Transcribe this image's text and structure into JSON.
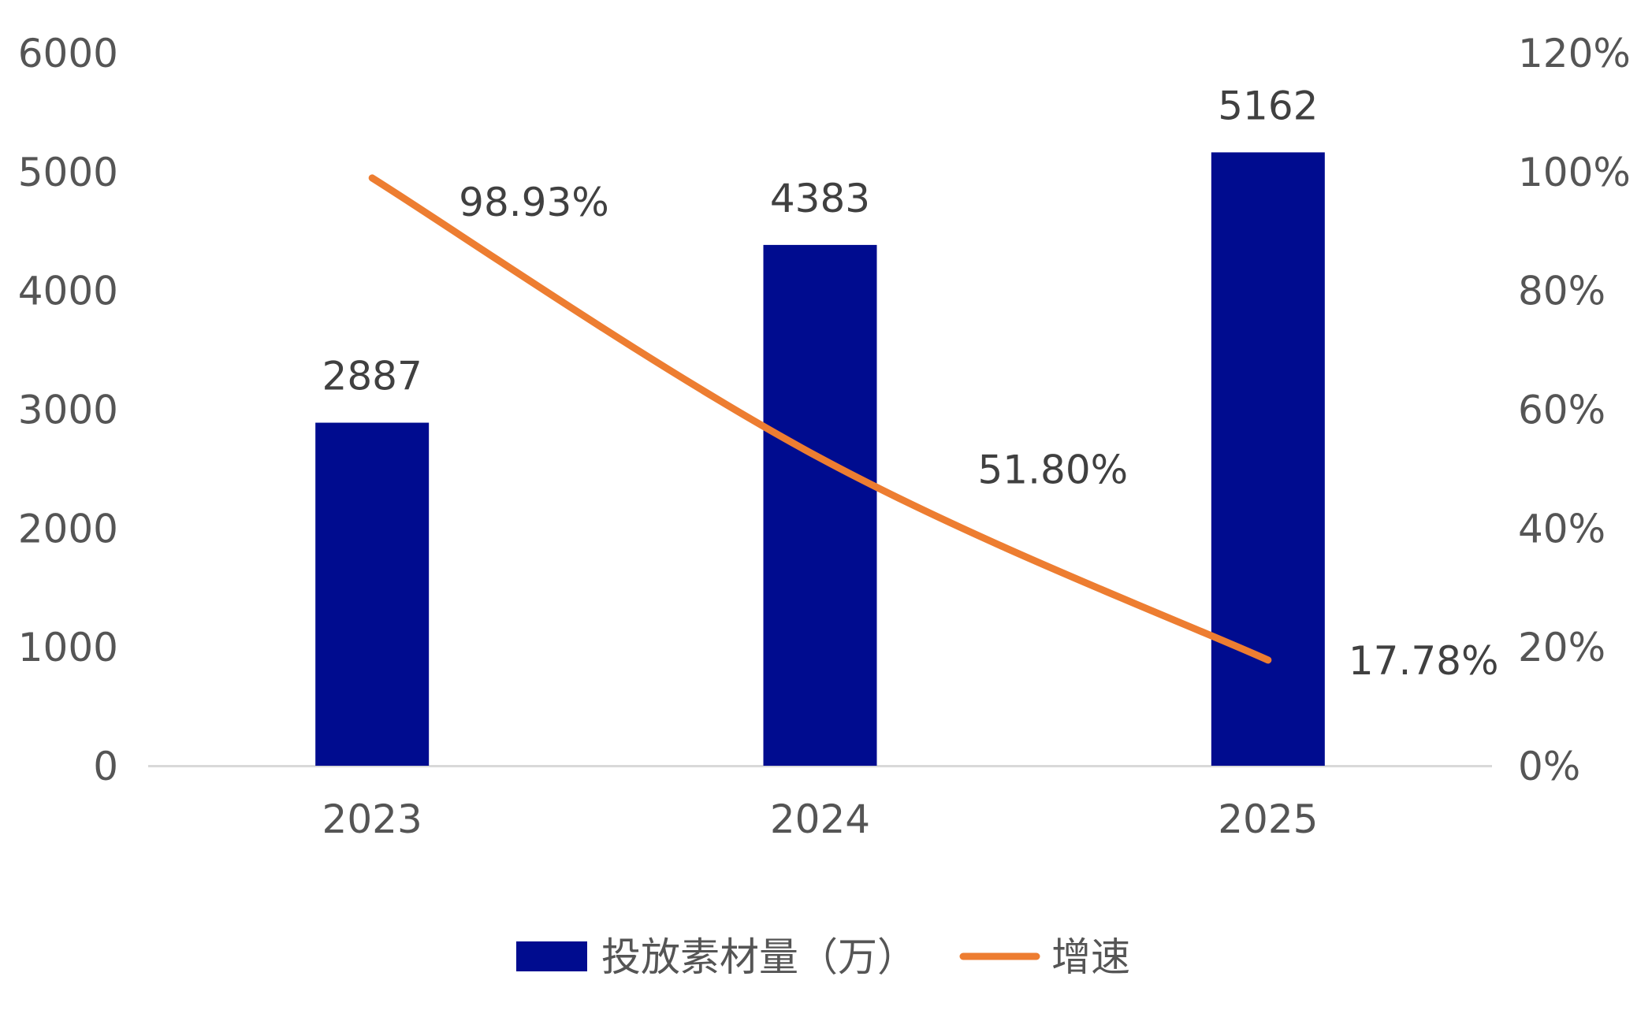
{
  "chart_data": {
    "type": "bar",
    "categories": [
      "2023",
      "2024",
      "2025"
    ],
    "series": [
      {
        "name": "投放素材量（万）",
        "type": "bar",
        "axis": "left",
        "values": [
          2887,
          4383,
          5162
        ],
        "labels": [
          "2887",
          "4383",
          "5162"
        ],
        "color": "#000C8F"
      },
      {
        "name": "增速",
        "type": "line",
        "axis": "right",
        "values": [
          98.93,
          51.8,
          17.78
        ],
        "labels": [
          "98.93%",
          "51.80%",
          "17.78%"
        ],
        "color": "#ED7D31"
      }
    ],
    "y_left": {
      "ylim": [
        0,
        6000
      ],
      "ticks": [
        "0",
        "1000",
        "2000",
        "3000",
        "4000",
        "5000",
        "6000"
      ]
    },
    "y_right": {
      "ylim": [
        0,
        120
      ],
      "ticks": [
        "0%",
        "20%",
        "40%",
        "60%",
        "80%",
        "100%",
        "120%"
      ]
    },
    "grid": false,
    "legend": {
      "position": "bottom"
    }
  }
}
